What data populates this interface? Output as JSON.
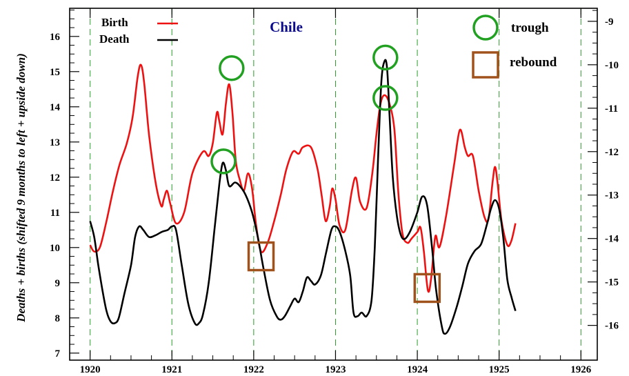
{
  "chart_data": {
    "type": "line",
    "title": "Chile",
    "ylabel": "Deaths + births (shifted 9 months to left + upside down)",
    "xlim": [
      1919.75,
      1926.2
    ],
    "ylim_left": [
      6.8,
      16.8
    ],
    "ylim_right": [
      -16.8,
      -8.7
    ],
    "x_ticks": [
      "1920",
      "1921",
      "1922",
      "1923",
      "1924",
      "1925",
      "1926"
    ],
    "y_ticks_left": [
      "7",
      "8",
      "9",
      "10",
      "11",
      "12",
      "13",
      "14",
      "15",
      "16"
    ],
    "y_ticks_right": [
      "-9",
      "-10",
      "-11",
      "-12",
      "-13",
      "-14",
      "-15",
      "-16"
    ],
    "grid": "vertical dashed green at each year",
    "legend": [
      {
        "label": "Birth",
        "color": "#ee1111"
      },
      {
        "label": "Death",
        "color": "#000000"
      }
    ],
    "series": [
      {
        "name": "Birth",
        "color": "#ee1111",
        "axis": "right",
        "points": [
          [
            1920.0,
            -14.15
          ],
          [
            1920.05,
            -14.3
          ],
          [
            1920.12,
            -14.2
          ],
          [
            1920.2,
            -13.6
          ],
          [
            1920.28,
            -12.9
          ],
          [
            1920.36,
            -12.3
          ],
          [
            1920.45,
            -11.8
          ],
          [
            1920.52,
            -11.2
          ],
          [
            1920.58,
            -10.3
          ],
          [
            1920.62,
            -10.0
          ],
          [
            1920.66,
            -10.4
          ],
          [
            1920.72,
            -11.6
          ],
          [
            1920.8,
            -12.7
          ],
          [
            1920.87,
            -13.25
          ],
          [
            1920.9,
            -13.1
          ],
          [
            1920.94,
            -12.9
          ],
          [
            1920.98,
            -13.2
          ],
          [
            1921.05,
            -13.65
          ],
          [
            1921.15,
            -13.4
          ],
          [
            1921.25,
            -12.5
          ],
          [
            1921.38,
            -12.0
          ],
          [
            1921.45,
            -12.1
          ],
          [
            1921.5,
            -11.8
          ],
          [
            1921.55,
            -11.1
          ],
          [
            1921.58,
            -11.3
          ],
          [
            1921.62,
            -11.6
          ],
          [
            1921.66,
            -10.9
          ],
          [
            1921.7,
            -10.45
          ],
          [
            1921.74,
            -11.1
          ],
          [
            1921.78,
            -12.2
          ],
          [
            1921.83,
            -12.65
          ],
          [
            1921.88,
            -12.9
          ],
          [
            1921.93,
            -12.5
          ],
          [
            1921.98,
            -12.85
          ],
          [
            1922.03,
            -13.7
          ],
          [
            1922.09,
            -14.3
          ],
          [
            1922.17,
            -14.1
          ],
          [
            1922.25,
            -13.6
          ],
          [
            1922.33,
            -13.0
          ],
          [
            1922.4,
            -12.4
          ],
          [
            1922.48,
            -12.0
          ],
          [
            1922.55,
            -12.05
          ],
          [
            1922.6,
            -11.9
          ],
          [
            1922.7,
            -11.9
          ],
          [
            1922.78,
            -12.4
          ],
          [
            1922.83,
            -13.0
          ],
          [
            1922.88,
            -13.6
          ],
          [
            1922.93,
            -13.25
          ],
          [
            1922.96,
            -12.85
          ],
          [
            1923.0,
            -13.1
          ],
          [
            1923.05,
            -13.7
          ],
          [
            1923.12,
            -13.8
          ],
          [
            1923.2,
            -12.9
          ],
          [
            1923.25,
            -12.6
          ],
          [
            1923.3,
            -13.15
          ],
          [
            1923.38,
            -13.3
          ],
          [
            1923.45,
            -12.5
          ],
          [
            1923.5,
            -11.6
          ],
          [
            1923.55,
            -10.9
          ],
          [
            1923.6,
            -10.7
          ],
          [
            1923.66,
            -10.9
          ],
          [
            1923.72,
            -11.5
          ],
          [
            1923.77,
            -13.0
          ],
          [
            1923.82,
            -13.9
          ],
          [
            1923.88,
            -14.1
          ],
          [
            1923.93,
            -14.0
          ],
          [
            1924.0,
            -13.85
          ],
          [
            1924.04,
            -13.75
          ],
          [
            1924.08,
            -14.3
          ],
          [
            1924.13,
            -15.2
          ],
          [
            1924.17,
            -14.9
          ],
          [
            1924.22,
            -13.95
          ],
          [
            1924.27,
            -14.2
          ],
          [
            1924.35,
            -13.5
          ],
          [
            1924.45,
            -12.3
          ],
          [
            1924.52,
            -11.5
          ],
          [
            1924.58,
            -11.9
          ],
          [
            1924.62,
            -12.1
          ],
          [
            1924.68,
            -12.1
          ],
          [
            1924.75,
            -12.9
          ],
          [
            1924.82,
            -13.5
          ],
          [
            1924.87,
            -13.55
          ],
          [
            1924.92,
            -12.7
          ],
          [
            1924.95,
            -12.35
          ],
          [
            1924.98,
            -12.7
          ],
          [
            1925.03,
            -13.6
          ],
          [
            1925.1,
            -14.15
          ],
          [
            1925.15,
            -14.05
          ],
          [
            1925.2,
            -13.65
          ]
        ]
      },
      {
        "name": "Death",
        "color": "#000000",
        "axis": "left",
        "points": [
          [
            1920.0,
            10.75
          ],
          [
            1920.05,
            10.3
          ],
          [
            1920.1,
            9.5
          ],
          [
            1920.15,
            8.8
          ],
          [
            1920.2,
            8.2
          ],
          [
            1920.25,
            7.9
          ],
          [
            1920.3,
            7.85
          ],
          [
            1920.35,
            8.0
          ],
          [
            1920.42,
            8.7
          ],
          [
            1920.5,
            9.5
          ],
          [
            1920.55,
            10.3
          ],
          [
            1920.6,
            10.6
          ],
          [
            1920.65,
            10.5
          ],
          [
            1920.72,
            10.3
          ],
          [
            1920.8,
            10.35
          ],
          [
            1920.88,
            10.45
          ],
          [
            1920.95,
            10.5
          ],
          [
            1921.0,
            10.6
          ],
          [
            1921.05,
            10.5
          ],
          [
            1921.12,
            9.5
          ],
          [
            1921.2,
            8.4
          ],
          [
            1921.28,
            7.85
          ],
          [
            1921.33,
            7.85
          ],
          [
            1921.38,
            8.1
          ],
          [
            1921.45,
            9.0
          ],
          [
            1921.52,
            10.5
          ],
          [
            1921.58,
            11.8
          ],
          [
            1921.62,
            12.4
          ],
          [
            1921.66,
            12.2
          ],
          [
            1921.7,
            11.75
          ],
          [
            1921.77,
            11.85
          ],
          [
            1921.83,
            11.75
          ],
          [
            1921.9,
            11.5
          ],
          [
            1921.98,
            11.0
          ],
          [
            1922.05,
            10.3
          ],
          [
            1922.12,
            9.4
          ],
          [
            1922.2,
            8.5
          ],
          [
            1922.28,
            8.05
          ],
          [
            1922.33,
            7.95
          ],
          [
            1922.38,
            8.05
          ],
          [
            1922.45,
            8.35
          ],
          [
            1922.5,
            8.55
          ],
          [
            1922.55,
            8.45
          ],
          [
            1922.6,
            8.75
          ],
          [
            1922.65,
            9.15
          ],
          [
            1922.7,
            9.05
          ],
          [
            1922.75,
            8.95
          ],
          [
            1922.82,
            9.2
          ],
          [
            1922.88,
            9.8
          ],
          [
            1922.95,
            10.5
          ],
          [
            1923.0,
            10.6
          ],
          [
            1923.05,
            10.45
          ],
          [
            1923.12,
            9.9
          ],
          [
            1923.18,
            9.2
          ],
          [
            1923.22,
            8.15
          ],
          [
            1923.27,
            8.05
          ],
          [
            1923.32,
            8.15
          ],
          [
            1923.38,
            8.05
          ],
          [
            1923.44,
            8.5
          ],
          [
            1923.48,
            10.0
          ],
          [
            1923.52,
            12.5
          ],
          [
            1923.56,
            14.7
          ],
          [
            1923.6,
            15.3
          ],
          [
            1923.63,
            15.1
          ],
          [
            1923.66,
            13.8
          ],
          [
            1923.7,
            12.0
          ],
          [
            1923.75,
            10.9
          ],
          [
            1923.8,
            10.35
          ],
          [
            1923.85,
            10.25
          ],
          [
            1923.92,
            10.5
          ],
          [
            1924.0,
            11.0
          ],
          [
            1924.06,
            11.45
          ],
          [
            1924.12,
            11.2
          ],
          [
            1924.18,
            10.0
          ],
          [
            1924.23,
            8.8
          ],
          [
            1924.3,
            7.75
          ],
          [
            1924.34,
            7.55
          ],
          [
            1924.4,
            7.75
          ],
          [
            1924.48,
            8.3
          ],
          [
            1924.55,
            8.9
          ],
          [
            1924.62,
            9.55
          ],
          [
            1924.7,
            9.9
          ],
          [
            1924.78,
            10.1
          ],
          [
            1924.85,
            10.65
          ],
          [
            1924.9,
            11.1
          ],
          [
            1924.95,
            11.35
          ],
          [
            1925.0,
            11.1
          ],
          [
            1925.05,
            10.3
          ],
          [
            1925.1,
            9.1
          ],
          [
            1925.15,
            8.6
          ],
          [
            1925.2,
            8.2
          ]
        ]
      }
    ],
    "annotations": [
      {
        "type": "trough",
        "shape": "circle",
        "color": "#22a022",
        "x": 1921.63,
        "axis": "left",
        "y": 12.45
      },
      {
        "type": "trough",
        "shape": "circle",
        "color": "#22a022",
        "x": 1921.73,
        "axis": "left",
        "y": 15.1
      },
      {
        "type": "trough",
        "shape": "circle",
        "color": "#22a022",
        "x": 1923.61,
        "axis": "left",
        "y": 15.4
      },
      {
        "type": "trough",
        "shape": "circle",
        "color": "#22a022",
        "x": 1923.61,
        "axis": "left",
        "y": 14.25
      },
      {
        "type": "rebound",
        "shape": "square",
        "color": "#a0521c",
        "x": 1922.09,
        "axis": "left",
        "y": 9.75
      },
      {
        "type": "rebound",
        "shape": "square",
        "color": "#a0521c",
        "x": 1924.12,
        "axis": "left",
        "y": 8.85
      }
    ],
    "marker_legend": [
      {
        "label": "trough",
        "shape": "circle",
        "color": "#22a022"
      },
      {
        "label": "rebound",
        "shape": "square",
        "color": "#a0521c"
      }
    ]
  }
}
